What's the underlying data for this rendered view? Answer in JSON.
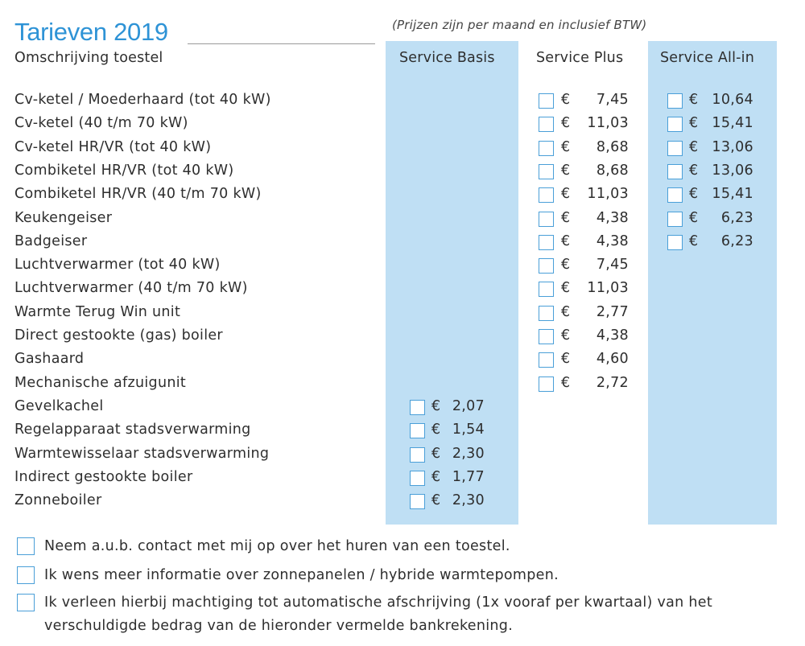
{
  "title": "Tarieven 2019",
  "note": "(Prijzen zijn per maand en inclusief BTW)",
  "headers": {
    "description": "Omschrijving toestel",
    "basis": "Service Basis",
    "plus": "Service Plus",
    "allin": "Service All-in"
  },
  "currency": "€",
  "rows": [
    {
      "label": "Cv-ketel / Moederhaard (tot 40 kW)",
      "basis": null,
      "plus": "7,45",
      "allin": "10,64"
    },
    {
      "label": "Cv-ketel  (40 t/m 70 kW)",
      "basis": null,
      "plus": "11,03",
      "allin": "15,41"
    },
    {
      "label": "Cv-ketel  HR/VR (tot 40 kW)",
      "basis": null,
      "plus": "8,68",
      "allin": "13,06"
    },
    {
      "label": "Combiketel  HR/VR (tot 40 kW)",
      "basis": null,
      "plus": "8,68",
      "allin": "13,06"
    },
    {
      "label": "Combiketel  HR/VR (40 t/m 70 kW)",
      "basis": null,
      "plus": "11,03",
      "allin": "15,41"
    },
    {
      "label": "Keukengeiser",
      "basis": null,
      "plus": "4,38",
      "allin": "6,23"
    },
    {
      "label": "Badgeiser",
      "basis": null,
      "plus": "4,38",
      "allin": "6,23"
    },
    {
      "label": "Luchtverwarmer (tot 40 kW)",
      "basis": null,
      "plus": "7,45",
      "allin": null
    },
    {
      "label": "Luchtverwarmer (40 t/m 70 kW)",
      "basis": null,
      "plus": "11,03",
      "allin": null
    },
    {
      "label": "Warmte Terug Win unit",
      "basis": null,
      "plus": "2,77",
      "allin": null
    },
    {
      "label": "Direct gestookte (gas) boiler",
      "basis": null,
      "plus": "4,38",
      "allin": null
    },
    {
      "label": "Gashaard",
      "basis": null,
      "plus": "4,60",
      "allin": null
    },
    {
      "label": "Mechanische afzuigunit",
      "basis": null,
      "plus": "2,72",
      "allin": null
    },
    {
      "label": "Gevelkachel",
      "basis": "2,07",
      "plus": null,
      "allin": null
    },
    {
      "label": "Regelapparaat stadsverwarming",
      "basis": "1,54",
      "plus": null,
      "allin": null
    },
    {
      "label": "Warmtewisselaar stadsverwarming",
      "basis": "2,30",
      "plus": null,
      "allin": null
    },
    {
      "label": "Indirect gestookte boiler",
      "basis": "1,77",
      "plus": null,
      "allin": null
    },
    {
      "label": "Zonneboiler",
      "basis": "2,30",
      "plus": null,
      "allin": null
    }
  ],
  "options": [
    "Neem a.u.b. contact met mij op over het huren van een toestel.",
    "Ik wens meer informatie over zonnepanelen / hybride warmtepompen.",
    "Ik verleen hierbij machtiging tot automatische afschrijving (1x vooraf per kwartaal) van het verschuldigde bedrag van de hieronder vermelde bankrekening."
  ],
  "colors": {
    "accent": "#2e93d6",
    "column_fill": "#bfdff4",
    "checkbox_border": "#4a9fd8"
  }
}
